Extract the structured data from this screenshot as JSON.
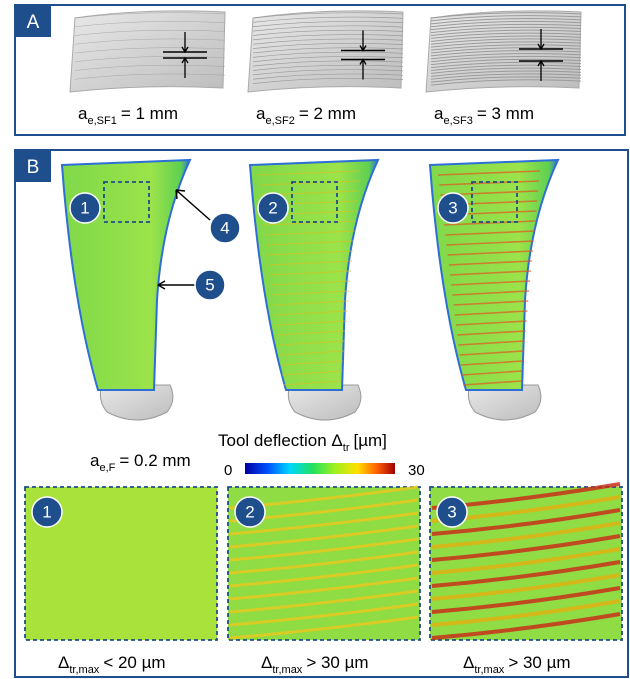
{
  "panel_a": {
    "label": "A",
    "items": [
      {
        "main": "a",
        "sub": "e,SF1",
        "rest": "= 1 mm"
      },
      {
        "main": "a",
        "sub": "e,SF2",
        "rest": "= 2 mm"
      },
      {
        "main": "a",
        "sub": "e,SF3",
        "rest": "= 3 mm"
      }
    ]
  },
  "panel_b": {
    "label": "B",
    "blade_markers": [
      "1",
      "2",
      "3",
      "4",
      "5"
    ],
    "finish": {
      "main": "a",
      "sub": "e,F",
      "rest": "= 0.2 mm"
    },
    "colorbar": {
      "title_main": "Tool deflection Δ",
      "title_sub": "tr",
      "title_rest": "[µm]",
      "min": 0,
      "max": 30
    },
    "zoom_markers": [
      "1",
      "2",
      "3"
    ],
    "zoom_labels": [
      {
        "main": "Δ",
        "sub": "tr,max",
        "rest": "< 20 µm"
      },
      {
        "main": "Δ",
        "sub": "tr,max",
        "rest": "> 30 µm"
      },
      {
        "main": "Δ",
        "sub": "tr,max",
        "rest": "> 30 µm"
      }
    ]
  }
}
